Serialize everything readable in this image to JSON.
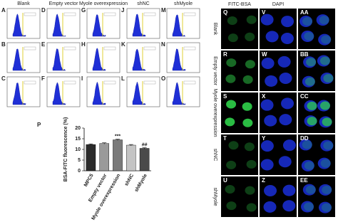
{
  "histogram_panels": {
    "columns": [
      "Blank",
      "Empty vector",
      "Myole overexpression",
      "shNC",
      "shMyole"
    ],
    "letters": [
      [
        "A",
        "D",
        "G",
        "J",
        "M"
      ],
      [
        "B",
        "E",
        "H",
        "K",
        "N"
      ],
      [
        "C",
        "F",
        "I",
        "L",
        "O"
      ]
    ]
  },
  "chart_data": {
    "type": "bar",
    "letter": "P",
    "ylabel": "BSA-FITC fluorescence (%)",
    "categories": [
      "MPC5",
      "Empty vector",
      "Myole overexpression",
      "shNC",
      "shMyole"
    ],
    "values": [
      12.3,
      12.8,
      14.5,
      12.0,
      10.5
    ],
    "errors": [
      0.3,
      0.3,
      0.3,
      0.3,
      0.3
    ],
    "colors": [
      "#2b2b2b",
      "#9a9a9a",
      "#7a7a7a",
      "#c4c4c4",
      "#4a4a4a"
    ],
    "significance": [
      null,
      null,
      "***",
      null,
      "##"
    ],
    "ylim": [
      0,
      20
    ],
    "yticks": [
      0,
      5,
      10,
      15,
      20
    ]
  },
  "microscopy": {
    "columns": [
      "FITC-BSA",
      "DAPI"
    ],
    "rows": [
      "Blank",
      "Empty vector",
      "Myole overexpression",
      "shNC",
      "shMyole"
    ],
    "letters": [
      [
        "Q",
        "V",
        "AA"
      ],
      [
        "R",
        "W",
        "BB"
      ],
      [
        "S",
        "X",
        "CC"
      ],
      [
        "T",
        "Y",
        "DD"
      ],
      [
        "U",
        "Z",
        "EE"
      ]
    ]
  }
}
